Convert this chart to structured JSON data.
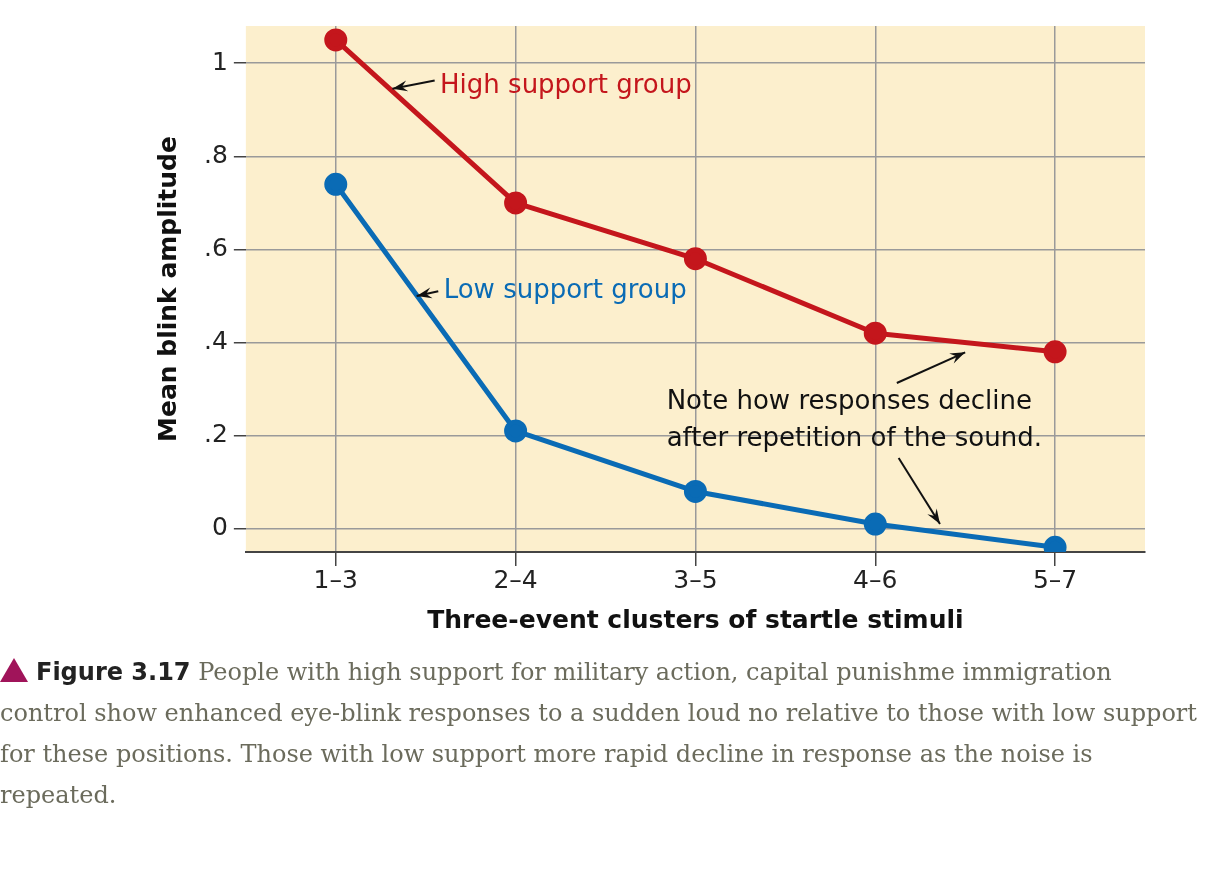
{
  "chart_data": {
    "type": "line",
    "xlabel": "Three-event clusters of startle stimuli",
    "ylabel": "Mean blink amplitude",
    "categories": [
      "1–3",
      "2–4",
      "3–5",
      "4–6",
      "5–7"
    ],
    "series": [
      {
        "name": "High support group",
        "color": "#c4161c",
        "values": [
          1.05,
          0.7,
          0.58,
          0.42,
          0.38
        ]
      },
      {
        "name": "Low support group",
        "color": "#0a6bb5",
        "values": [
          0.74,
          0.21,
          0.08,
          0.01,
          -0.04
        ]
      }
    ],
    "ylim": [
      -0.05,
      1.08
    ],
    "yticks": [
      0,
      {
        "value": 0.2,
        "label": ".2"
      },
      {
        "value": 0.4,
        "label": ".4"
      },
      {
        "value": 0.6,
        "label": ".6"
      },
      {
        "value": 0.8,
        "label": ".8"
      },
      1
    ],
    "grid": true,
    "legend": false,
    "marker": "circle",
    "line_style": "solid",
    "annotations": [
      "Note how responses decline after repetition of the sound.",
      "Figure 3.17",
      "People with high support for military action, capital punishme immigration control show enhanced eye-blink responses to a sudden loud no relative to those with low support for these positions. Those with low support more rapid decline in response as the noise is repeated."
    ]
  }
}
